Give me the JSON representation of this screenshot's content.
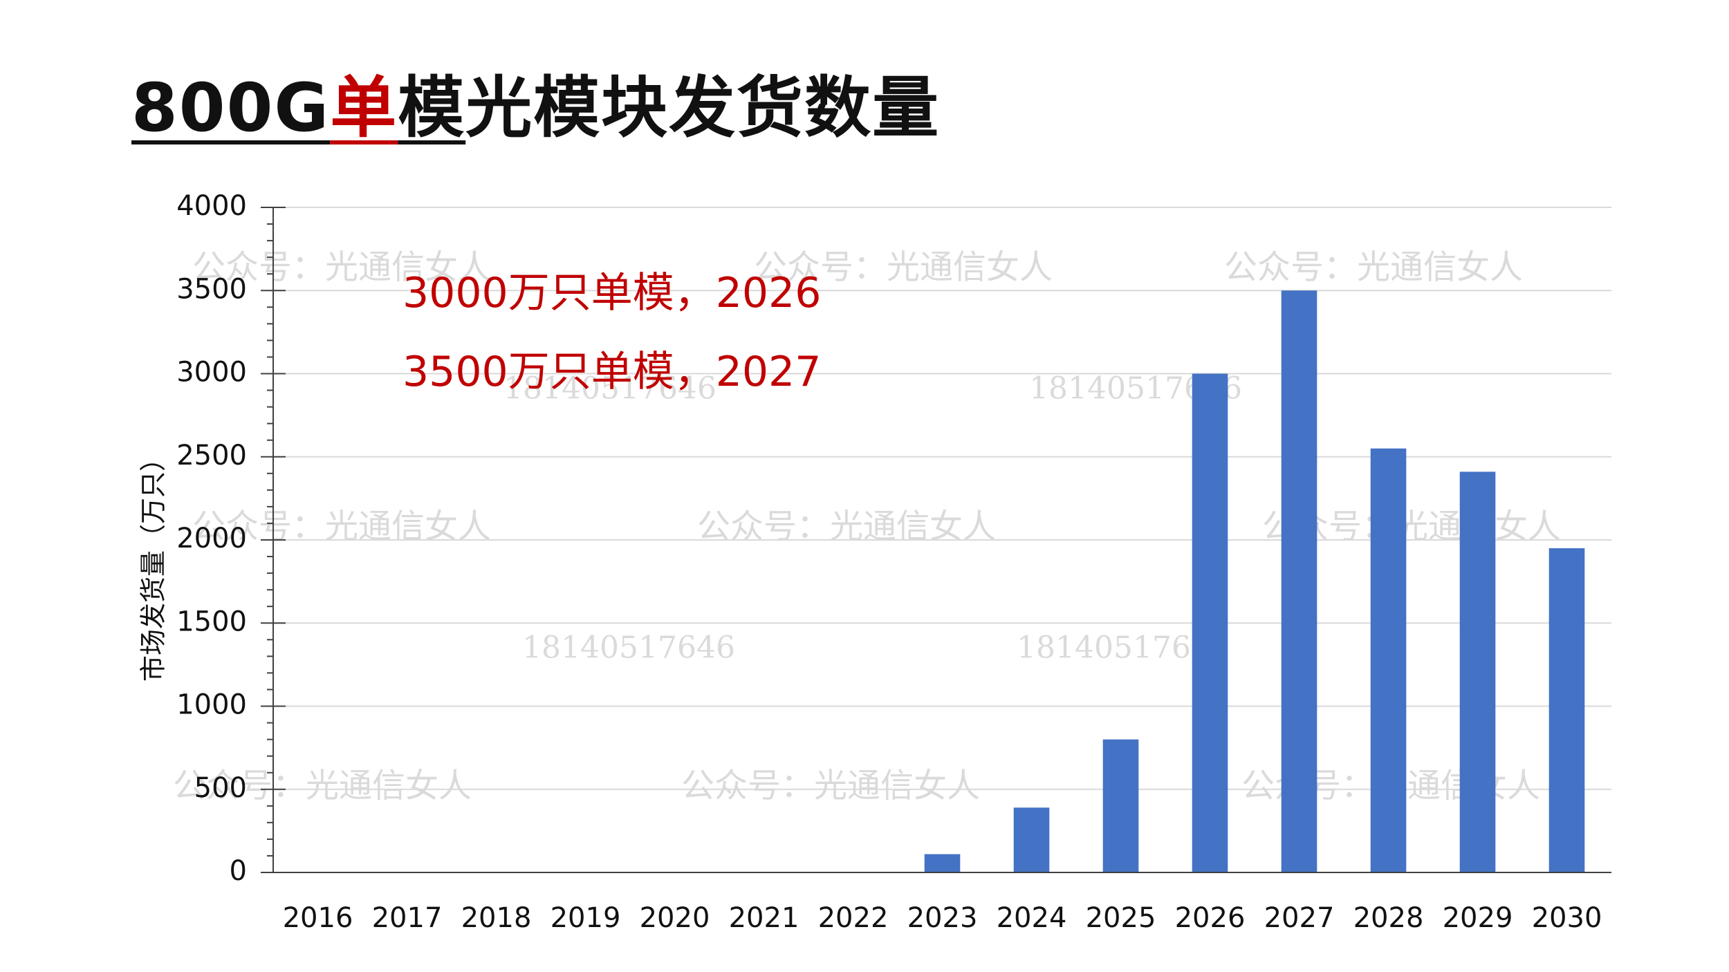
{
  "slide": {
    "title_part1": "800G",
    "title_part2": "单",
    "title_part3": "模",
    "title_part4": "光模块发货数量",
    "title_accent_color": "#c00000",
    "annotations": [
      "3000万只单模，2026",
      "3500万只单模，2027"
    ],
    "watermark_text": "公众号：光通信女人",
    "watermark_number": "18140517646"
  },
  "chart_data": {
    "type": "bar",
    "title": "",
    "xlabel": "",
    "ylabel": "市场发货量（万只）",
    "categories": [
      "2016",
      "2017",
      "2018",
      "2019",
      "2020",
      "2021",
      "2022",
      "2023",
      "2024",
      "2025",
      "2026",
      "2027",
      "2028",
      "2029",
      "2030"
    ],
    "values": [
      0,
      0,
      0,
      0,
      0,
      0,
      0,
      110,
      390,
      800,
      3000,
      3500,
      2550,
      2410,
      1950
    ],
    "ylim": [
      0,
      4000
    ],
    "yticks": [
      0,
      500,
      1000,
      1500,
      2000,
      2500,
      3000,
      3500,
      4000
    ],
    "grid": true,
    "bar_color": "#4472c4",
    "legend": "none"
  }
}
